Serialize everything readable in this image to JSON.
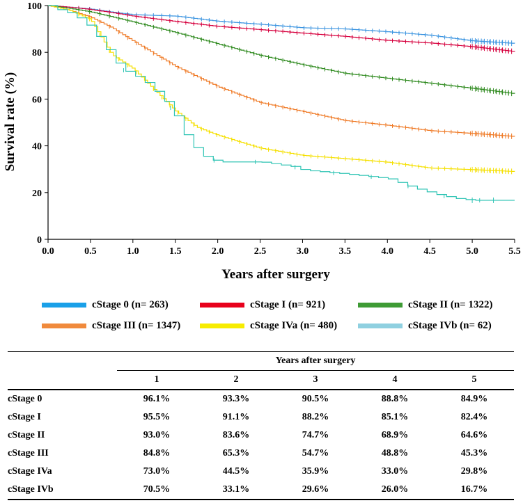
{
  "chart_data": {
    "type": "line",
    "subtype": "kaplan-meier",
    "title": "",
    "xlabel": "Years after surgery",
    "ylabel": "Survival rate (%)",
    "xlim": [
      0,
      5.5
    ],
    "ylim": [
      0,
      100
    ],
    "xticks": [
      "0.0",
      "0.5",
      "1.0",
      "1.5",
      "2.0",
      "2.5",
      "3.0",
      "3.5",
      "4.0",
      "4.5",
      "5.0",
      "5.5"
    ],
    "yticks": [
      "0",
      "20",
      "40",
      "60",
      "80",
      "100"
    ],
    "grid": false,
    "legend_position": "bottom",
    "series": [
      {
        "name": "cStage 0 (n= 263)",
        "color": "#3b94e0",
        "x": [
          0,
          0.25,
          0.5,
          0.75,
          1.0,
          1.5,
          2.0,
          2.5,
          3.0,
          3.5,
          4.0,
          4.5,
          5.0,
          5.5
        ],
        "y": [
          100,
          99.3,
          98.5,
          97.2,
          96.1,
          95.5,
          93.3,
          92.0,
          90.5,
          90.0,
          88.8,
          87.3,
          84.9,
          83.8
        ]
      },
      {
        "name": "cStage I (n= 921)",
        "color": "#d6003e",
        "x": [
          0,
          0.25,
          0.5,
          0.75,
          1.0,
          1.5,
          2.0,
          2.5,
          3.0,
          3.5,
          4.0,
          4.5,
          5.0,
          5.5
        ],
        "y": [
          100,
          99.3,
          98.3,
          97.0,
          95.5,
          93.2,
          91.1,
          89.7,
          88.2,
          86.8,
          85.1,
          84.0,
          82.4,
          80.3
        ]
      },
      {
        "name": "cStage II (n= 1322)",
        "color": "#2f8a1f",
        "x": [
          0,
          0.25,
          0.5,
          0.75,
          1.0,
          1.5,
          2.0,
          2.5,
          3.0,
          3.5,
          4.0,
          4.5,
          5.0,
          5.5
        ],
        "y": [
          100,
          98.8,
          97.3,
          95.2,
          93.0,
          88.5,
          83.6,
          78.7,
          74.7,
          71.0,
          68.9,
          66.8,
          64.6,
          62.3
        ]
      },
      {
        "name": "cStage III (n= 1347)",
        "color": "#ef7a26",
        "x": [
          0,
          0.25,
          0.5,
          0.75,
          1.0,
          1.5,
          2.0,
          2.5,
          3.0,
          3.5,
          4.0,
          4.5,
          5.0,
          5.5
        ],
        "y": [
          100,
          98.0,
          95.0,
          90.5,
          84.8,
          74.0,
          65.3,
          58.5,
          54.7,
          50.8,
          48.8,
          46.5,
          45.3,
          44.0
        ]
      },
      {
        "name": "cStage IVa (n= 480)",
        "color": "#f5e000",
        "x": [
          0,
          0.25,
          0.5,
          0.6,
          0.75,
          1.0,
          1.25,
          1.5,
          1.75,
          2.0,
          2.5,
          3.0,
          3.5,
          4.0,
          4.5,
          5.0,
          5.5
        ],
        "y": [
          100,
          98.0,
          94.0,
          88.0,
          79.0,
          73.0,
          64.0,
          55.0,
          48.0,
          44.5,
          39.0,
          35.9,
          34.5,
          33.0,
          30.5,
          29.8,
          29.0
        ]
      },
      {
        "name": "cStage IVb (n= 62)",
        "color": "#2ec4b4",
        "x": [
          0,
          0.1,
          0.25,
          0.4,
          0.5,
          0.6,
          0.75,
          0.85,
          1.0,
          1.15,
          1.3,
          1.45,
          1.55,
          1.65,
          1.8,
          2.0,
          2.5,
          2.9,
          3.0,
          3.5,
          4.0,
          4.3,
          4.6,
          4.8,
          5.0,
          5.5
        ],
        "y": [
          100,
          98.4,
          96.8,
          93.5,
          90.3,
          85.5,
          78.0,
          73.0,
          70.5,
          67.0,
          62.0,
          56.0,
          48.0,
          42.0,
          36.0,
          33.1,
          33.1,
          31.0,
          29.6,
          28.0,
          26.0,
          22.0,
          19.0,
          17.5,
          16.7,
          16.7
        ]
      }
    ]
  },
  "legend": [
    {
      "label": "cStage 0 (n= 263)",
      "color": "#1aa0e8"
    },
    {
      "label": "cStage I (n= 921)",
      "color": "#e8001c"
    },
    {
      "label": "cStage II (n= 1322)",
      "color": "#3e9b35"
    },
    {
      "label": "cStage III (n= 1347)",
      "color": "#f08a3c"
    },
    {
      "label": "cStage IVa (n= 480)",
      "color": "#f7ec00"
    },
    {
      "label": "cStage IVb (n= 62)",
      "color": "#8fd0e0"
    }
  ],
  "table": {
    "group_header": "Years after surgery",
    "years": [
      "1",
      "2",
      "3",
      "4",
      "5"
    ],
    "rows": [
      {
        "stage": "cStage 0",
        "values": [
          "96.1%",
          "93.3%",
          "90.5%",
          "88.8%",
          "84.9%"
        ]
      },
      {
        "stage": "cStage I",
        "values": [
          "95.5%",
          "91.1%",
          "88.2%",
          "85.1%",
          "82.4%"
        ]
      },
      {
        "stage": "cStage II",
        "values": [
          "93.0%",
          "83.6%",
          "74.7%",
          "68.9%",
          "64.6%"
        ]
      },
      {
        "stage": "cStage III",
        "values": [
          "84.8%",
          "65.3%",
          "54.7%",
          "48.8%",
          "45.3%"
        ]
      },
      {
        "stage": "cStage IVa",
        "values": [
          "73.0%",
          "44.5%",
          "35.9%",
          "33.0%",
          "29.8%"
        ]
      },
      {
        "stage": "cStage IVb",
        "values": [
          "70.5%",
          "33.1%",
          "29.6%",
          "26.0%",
          "16.7%"
        ]
      }
    ]
  }
}
